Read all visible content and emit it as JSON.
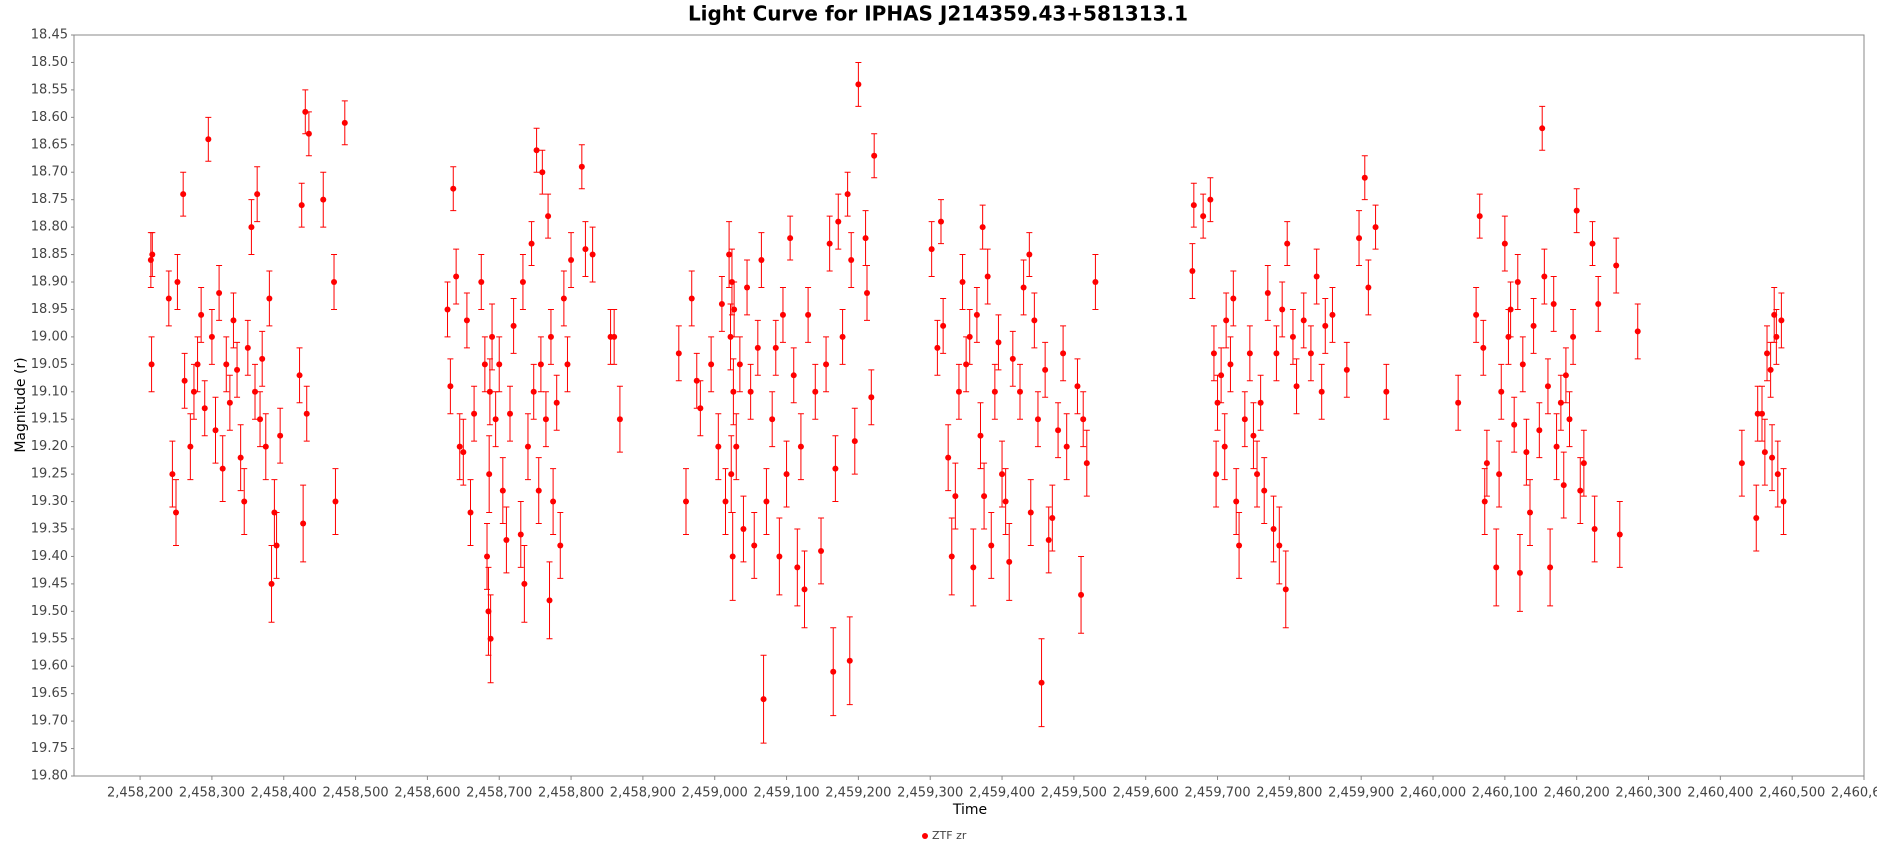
{
  "chart_data": {
    "type": "scatter_errorbar",
    "title": "Light Curve for IPHAS J214359.43+581313.1",
    "x_label": "Time",
    "y_label": "Magnitude (r)",
    "y_inverted": true,
    "grid": false,
    "legend_position": "bottom",
    "xlim": [
      2458108,
      2460600
    ],
    "ylim": [
      18.45,
      19.8
    ],
    "xticks": [
      {
        "value": 2458200,
        "label": "2,458,200"
      },
      {
        "value": 2458300,
        "label": "2,458,300"
      },
      {
        "value": 2458400,
        "label": "2,458,400"
      },
      {
        "value": 2458500,
        "label": "2,458,500"
      },
      {
        "value": 2458600,
        "label": "2,458,600"
      },
      {
        "value": 2458700,
        "label": "2,458,700"
      },
      {
        "value": 2458800,
        "label": "2,458,800"
      },
      {
        "value": 2458900,
        "label": "2,458,900"
      },
      {
        "value": 2459000,
        "label": "2,459,000"
      },
      {
        "value": 2459100,
        "label": "2,459,100"
      },
      {
        "value": 2459200,
        "label": "2,459,200"
      },
      {
        "value": 2459300,
        "label": "2,459,300"
      },
      {
        "value": 2459400,
        "label": "2,459,400"
      },
      {
        "value": 2459500,
        "label": "2,459,500"
      },
      {
        "value": 2459600,
        "label": "2,459,600"
      },
      {
        "value": 2459700,
        "label": "2,459,700"
      },
      {
        "value": 2459800,
        "label": "2,459,800"
      },
      {
        "value": 2459900,
        "label": "2,459,900"
      },
      {
        "value": 2460000,
        "label": "2,460,000"
      },
      {
        "value": 2460100,
        "label": "2,460,100"
      },
      {
        "value": 2460200,
        "label": "2,460,200"
      },
      {
        "value": 2460300,
        "label": "2,460,300"
      },
      {
        "value": 2460400,
        "label": "2,460,400"
      },
      {
        "value": 2460500,
        "label": "2,460,500"
      },
      {
        "value": 2460600,
        "label": "2,460,600"
      }
    ],
    "yticks": [
      18.45,
      {
        "value": 18.5,
        "label": "18.50"
      },
      18.55,
      {
        "value": 18.6,
        "label": "18.60"
      },
      18.65,
      {
        "value": 18.7,
        "label": "18.70"
      },
      18.75,
      {
        "value": 18.8,
        "label": "18.80"
      },
      18.85,
      {
        "value": 18.9,
        "label": "18.90"
      },
      18.95,
      {
        "value": 19.0,
        "label": "19.00"
      },
      19.05,
      {
        "value": 19.1,
        "label": "19.10"
      },
      19.15,
      {
        "value": 19.2,
        "label": "19.20"
      },
      19.25,
      {
        "value": 19.3,
        "label": "19.30"
      },
      19.35,
      {
        "value": 19.4,
        "label": "19.40"
      },
      19.45,
      {
        "value": 19.5,
        "label": "19.50"
      },
      19.55,
      {
        "value": 19.6,
        "label": "19.60"
      },
      19.65,
      {
        "value": 19.7,
        "label": "19.70"
      },
      19.75,
      {
        "value": 19.8,
        "label": "19.80"
      }
    ],
    "series": [
      {
        "name": "ZTF zr",
        "color": "#ff0000",
        "x": [
          2458215,
          2458216,
          2458217,
          2458240,
          2458245,
          2458250,
          2458252,
          2458260,
          2458262,
          2458270,
          2458275,
          2458280,
          2458285,
          2458290,
          2458295,
          2458300,
          2458305,
          2458310,
          2458315,
          2458320,
          2458325,
          2458330,
          2458335,
          2458340,
          2458345,
          2458350,
          2458355,
          2458360,
          2458363,
          2458367,
          2458370,
          2458375,
          2458380,
          2458383,
          2458387,
          2458390,
          2458395,
          2458422,
          2458425,
          2458427,
          2458430,
          2458432,
          2458435,
          2458455,
          2458470,
          2458472,
          2458485,
          2458628,
          2458632,
          2458636,
          2458640,
          2458645,
          2458650,
          2458655,
          2458660,
          2458665,
          2458675,
          2458680,
          2458683,
          2458685,
          2458686,
          2458687,
          2458688,
          2458690,
          2458695,
          2458700,
          2458705,
          2458710,
          2458715,
          2458720,
          2458730,
          2458733,
          2458735,
          2458740,
          2458745,
          2458748,
          2458752,
          2458755,
          2458758,
          2458760,
          2458765,
          2458768,
          2458770,
          2458772,
          2458775,
          2458780,
          2458785,
          2458790,
          2458795,
          2458800,
          2458815,
          2458820,
          2458830,
          2458855,
          2458860,
          2458868,
          2458950,
          2458960,
          2458968,
          2458975,
          2458980,
          2458995,
          2459005,
          2459010,
          2459015,
          2459020,
          2459022,
          2459023,
          2459024,
          2459025,
          2459026,
          2459027,
          2459030,
          2459035,
          2459040,
          2459045,
          2459050,
          2459055,
          2459060,
          2459065,
          2459068,
          2459072,
          2459080,
          2459085,
          2459090,
          2459095,
          2459100,
          2459105,
          2459110,
          2459115,
          2459120,
          2459125,
          2459130,
          2459140,
          2459148,
          2459155,
          2459160,
          2459165,
          2459168,
          2459172,
          2459178,
          2459185,
          2459188,
          2459190,
          2459195,
          2459200,
          2459210,
          2459212,
          2459218,
          2459222,
          2459302,
          2459310,
          2459315,
          2459318,
          2459325,
          2459330,
          2459335,
          2459340,
          2459345,
          2459350,
          2459355,
          2459360,
          2459365,
          2459370,
          2459373,
          2459375,
          2459380,
          2459385,
          2459390,
          2459395,
          2459400,
          2459405,
          2459410,
          2459415,
          2459425,
          2459430,
          2459438,
          2459440,
          2459445,
          2459450,
          2459455,
          2459460,
          2459465,
          2459470,
          2459478,
          2459485,
          2459490,
          2459505,
          2459510,
          2459513,
          2459518,
          2459530,
          2459665,
          2459667,
          2459680,
          2459690,
          2459695,
          2459698,
          2459700,
          2459705,
          2459710,
          2459712,
          2459718,
          2459722,
          2459726,
          2459730,
          2459738,
          2459745,
          2459750,
          2459755,
          2459760,
          2459765,
          2459770,
          2459778,
          2459782,
          2459786,
          2459790,
          2459795,
          2459797,
          2459805,
          2459810,
          2459820,
          2459830,
          2459838,
          2459845,
          2459850,
          2459860,
          2459880,
          2459897,
          2459905,
          2459910,
          2459920,
          2459935,
          2460035,
          2460060,
          2460065,
          2460070,
          2460072,
          2460075,
          2460088,
          2460092,
          2460095,
          2460100,
          2460105,
          2460108,
          2460113,
          2460118,
          2460121,
          2460125,
          2460130,
          2460135,
          2460140,
          2460148,
          2460152,
          2460155,
          2460160,
          2460163,
          2460168,
          2460172,
          2460178,
          2460182,
          2460185,
          2460190,
          2460195,
          2460200,
          2460205,
          2460210,
          2460222,
          2460225,
          2460230,
          2460255,
          2460260,
          2460285,
          2460430,
          2460450,
          2460452,
          2460458,
          2460462,
          2460465,
          2460470,
          2460472,
          2460475,
          2460478,
          2460480,
          2460485,
          2460488
        ],
        "values": [
          18.86,
          19.05,
          18.85,
          18.93,
          19.25,
          19.32,
          18.9,
          18.74,
          19.08,
          19.2,
          19.1,
          19.05,
          18.96,
          19.13,
          18.64,
          19.0,
          19.17,
          18.92,
          19.24,
          19.05,
          19.12,
          18.97,
          19.06,
          19.22,
          19.3,
          19.02,
          18.8,
          19.1,
          18.74,
          19.15,
          19.04,
          19.2,
          18.93,
          19.45,
          19.32,
          19.38,
          19.18,
          19.07,
          18.76,
          19.34,
          18.59,
          19.14,
          18.63,
          18.75,
          18.9,
          19.3,
          18.61,
          18.95,
          19.09,
          18.73,
          18.89,
          19.2,
          19.21,
          18.97,
          19.32,
          19.14,
          18.9,
          19.05,
          19.4,
          19.5,
          19.25,
          19.1,
          19.55,
          19.0,
          19.15,
          19.05,
          19.28,
          19.37,
          19.14,
          18.98,
          19.36,
          18.9,
          19.45,
          19.2,
          18.83,
          19.1,
          18.66,
          19.28,
          19.05,
          18.7,
          19.15,
          18.78,
          19.48,
          19.0,
          19.3,
          19.12,
          19.38,
          18.93,
          19.05,
          18.86,
          18.69,
          18.84,
          18.85,
          19.0,
          19.0,
          19.15,
          19.03,
          19.3,
          18.93,
          19.08,
          19.13,
          19.05,
          19.2,
          18.94,
          19.3,
          18.85,
          19.0,
          19.25,
          18.9,
          19.4,
          19.1,
          18.95,
          19.2,
          19.05,
          19.35,
          18.91,
          19.1,
          19.38,
          19.02,
          18.86,
          19.66,
          19.3,
          19.15,
          19.02,
          19.4,
          18.96,
          19.25,
          18.82,
          19.07,
          19.42,
          19.2,
          19.46,
          18.96,
          19.1,
          19.39,
          19.05,
          18.83,
          19.61,
          19.24,
          18.79,
          19.0,
          18.74,
          19.59,
          18.86,
          19.19,
          18.54,
          18.82,
          18.92,
          19.11,
          18.67,
          18.84,
          19.02,
          18.79,
          18.98,
          19.22,
          19.4,
          19.29,
          19.1,
          18.9,
          19.05,
          19.0,
          19.42,
          18.96,
          19.18,
          18.8,
          19.29,
          18.89,
          19.38,
          19.1,
          19.01,
          19.25,
          19.3,
          19.41,
          19.04,
          19.1,
          18.91,
          18.85,
          19.32,
          18.97,
          19.15,
          19.63,
          19.06,
          19.37,
          19.33,
          19.17,
          19.03,
          19.2,
          19.09,
          19.47,
          19.15,
          19.23,
          18.9,
          18.88,
          18.76,
          18.78,
          18.75,
          19.03,
          19.25,
          19.12,
          19.07,
          19.2,
          18.97,
          19.05,
          18.93,
          19.3,
          19.38,
          19.15,
          19.03,
          19.18,
          19.25,
          19.12,
          19.28,
          18.92,
          19.35,
          19.03,
          19.38,
          18.95,
          19.46,
          18.83,
          19.0,
          19.09,
          18.97,
          19.03,
          18.89,
          19.1,
          18.98,
          18.96,
          19.06,
          18.82,
          18.71,
          18.91,
          18.8,
          19.1,
          19.12,
          18.96,
          18.78,
          19.02,
          19.3,
          19.23,
          19.42,
          19.25,
          19.1,
          18.83,
          19.0,
          18.95,
          19.16,
          18.9,
          19.43,
          19.05,
          19.21,
          19.32,
          18.98,
          19.17,
          18.62,
          18.89,
          19.09,
          19.42,
          18.94,
          19.2,
          19.12,
          19.27,
          19.07,
          19.15,
          19.0,
          18.77,
          19.28,
          19.23,
          18.83,
          19.35,
          18.94,
          18.87,
          19.36,
          18.99,
          19.23,
          19.33,
          19.14,
          19.14,
          19.21,
          19.03,
          19.06,
          19.22,
          18.96,
          19.0,
          19.25,
          18.97,
          19.3
        ],
        "errors": [
          0.05,
          0.05,
          0.04,
          0.05,
          0.06,
          0.06,
          0.05,
          0.04,
          0.05,
          0.06,
          0.05,
          0.05,
          0.05,
          0.05,
          0.04,
          0.05,
          0.06,
          0.05,
          0.06,
          0.05,
          0.05,
          0.05,
          0.05,
          0.06,
          0.06,
          0.05,
          0.05,
          0.05,
          0.05,
          0.05,
          0.05,
          0.06,
          0.05,
          0.07,
          0.06,
          0.06,
          0.05,
          0.05,
          0.04,
          0.07,
          0.04,
          0.05,
          0.04,
          0.05,
          0.05,
          0.06,
          0.04,
          0.05,
          0.05,
          0.04,
          0.05,
          0.06,
          0.06,
          0.05,
          0.06,
          0.05,
          0.05,
          0.05,
          0.06,
          0.08,
          0.07,
          0.06,
          0.08,
          0.06,
          0.05,
          0.05,
          0.06,
          0.06,
          0.05,
          0.05,
          0.06,
          0.05,
          0.07,
          0.06,
          0.04,
          0.05,
          0.04,
          0.06,
          0.05,
          0.04,
          0.05,
          0.04,
          0.07,
          0.05,
          0.06,
          0.05,
          0.06,
          0.05,
          0.05,
          0.05,
          0.04,
          0.05,
          0.05,
          0.05,
          0.05,
          0.06,
          0.05,
          0.06,
          0.05,
          0.05,
          0.05,
          0.05,
          0.06,
          0.05,
          0.06,
          0.06,
          0.06,
          0.07,
          0.06,
          0.08,
          0.06,
          0.05,
          0.06,
          0.05,
          0.06,
          0.05,
          0.05,
          0.06,
          0.05,
          0.05,
          0.08,
          0.06,
          0.05,
          0.05,
          0.07,
          0.05,
          0.06,
          0.04,
          0.05,
          0.07,
          0.06,
          0.07,
          0.05,
          0.05,
          0.06,
          0.05,
          0.05,
          0.08,
          0.06,
          0.05,
          0.05,
          0.04,
          0.08,
          0.05,
          0.06,
          0.04,
          0.05,
          0.05,
          0.05,
          0.04,
          0.05,
          0.05,
          0.04,
          0.05,
          0.06,
          0.07,
          0.06,
          0.05,
          0.05,
          0.05,
          0.05,
          0.07,
          0.05,
          0.06,
          0.04,
          0.06,
          0.05,
          0.06,
          0.05,
          0.05,
          0.06,
          0.06,
          0.07,
          0.05,
          0.05,
          0.05,
          0.04,
          0.06,
          0.05,
          0.05,
          0.08,
          0.05,
          0.06,
          0.06,
          0.05,
          0.05,
          0.06,
          0.05,
          0.07,
          0.05,
          0.06,
          0.05,
          0.05,
          0.04,
          0.04,
          0.04,
          0.05,
          0.06,
          0.05,
          0.05,
          0.06,
          0.05,
          0.05,
          0.05,
          0.06,
          0.06,
          0.05,
          0.05,
          0.06,
          0.06,
          0.05,
          0.06,
          0.05,
          0.06,
          0.05,
          0.07,
          0.05,
          0.07,
          0.04,
          0.05,
          0.05,
          0.05,
          0.05,
          0.05,
          0.05,
          0.05,
          0.05,
          0.05,
          0.05,
          0.04,
          0.05,
          0.04,
          0.05,
          0.05,
          0.05,
          0.04,
          0.05,
          0.06,
          0.06,
          0.07,
          0.06,
          0.05,
          0.05,
          0.05,
          0.05,
          0.05,
          0.05,
          0.07,
          0.05,
          0.06,
          0.06,
          0.05,
          0.05,
          0.04,
          0.05,
          0.05,
          0.07,
          0.05,
          0.06,
          0.05,
          0.06,
          0.05,
          0.05,
          0.05,
          0.04,
          0.06,
          0.06,
          0.04,
          0.06,
          0.05,
          0.05,
          0.06,
          0.05,
          0.06,
          0.06,
          0.05,
          0.05,
          0.06,
          0.05,
          0.05,
          0.06,
          0.05,
          0.05,
          0.06,
          0.05,
          0.06
        ]
      }
    ]
  }
}
